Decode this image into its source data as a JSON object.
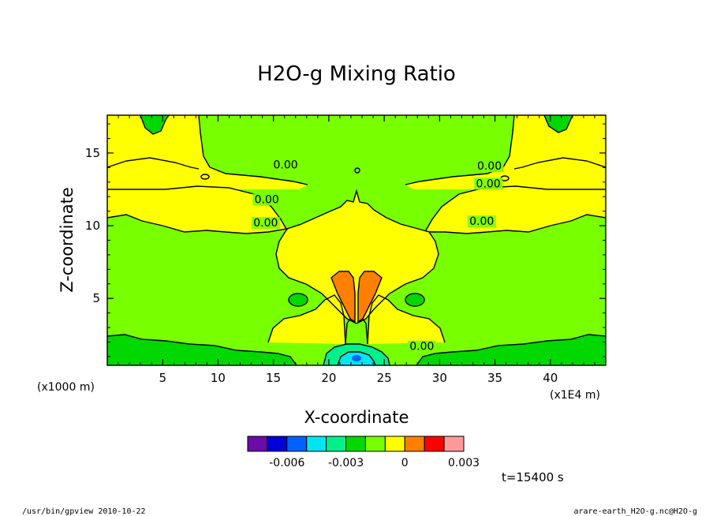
{
  "chart_data": {
    "type": "heatmap",
    "title": "H2O-g Mixing Ratio",
    "xlabel": "X-coordinate",
    "ylabel": "Z-coordinate",
    "x_unit": "(x1E4 m)",
    "y_unit": "(x1000 m)",
    "xlim": [
      0,
      45
    ],
    "ylim": [
      0.4,
      17.6
    ],
    "x_ticks": [
      5,
      10,
      15,
      20,
      25,
      30,
      35,
      40
    ],
    "x_tick_labels": [
      "5",
      "10",
      "15",
      "20",
      "25",
      "30",
      "35",
      "40"
    ],
    "y_ticks": [
      5,
      10,
      15
    ],
    "y_tick_labels": [
      "5",
      "10",
      "15"
    ],
    "colorbar": {
      "colors": [
        "#6a0ca8",
        "#0000d8",
        "#0062ff",
        "#00e6f0",
        "#00f08c",
        "#00d800",
        "#78ff00",
        "#ffff00",
        "#ff8000",
        "#ff0000",
        "#ff9a9a"
      ],
      "tick_values": [
        -0.006,
        -0.003,
        0,
        0.003
      ],
      "tick_labels": [
        "-0.006",
        "-0.003",
        "0",
        "0.003"
      ]
    },
    "contour_labels": [
      {
        "text": "0.00",
        "x": 16.1,
        "z": 14.0
      },
      {
        "text": "0.00",
        "x": 14.4,
        "z": 11.6
      },
      {
        "text": "0.00",
        "x": 14.3,
        "z": 10.0
      },
      {
        "text": "0.00",
        "x": 34.5,
        "z": 13.9
      },
      {
        "text": "0.00",
        "x": 34.4,
        "z": 12.7
      },
      {
        "text": "0.00",
        "x": 33.8,
        "z": 10.1
      },
      {
        "text": "0.00",
        "x": 28.4,
        "z": 1.5
      }
    ],
    "time_label": "t=15400 s"
  },
  "footer": {
    "left": "/usr/bin/gpview  2010-10-22",
    "right": "arare-earth_H2O-g.nc@H2O-g"
  }
}
